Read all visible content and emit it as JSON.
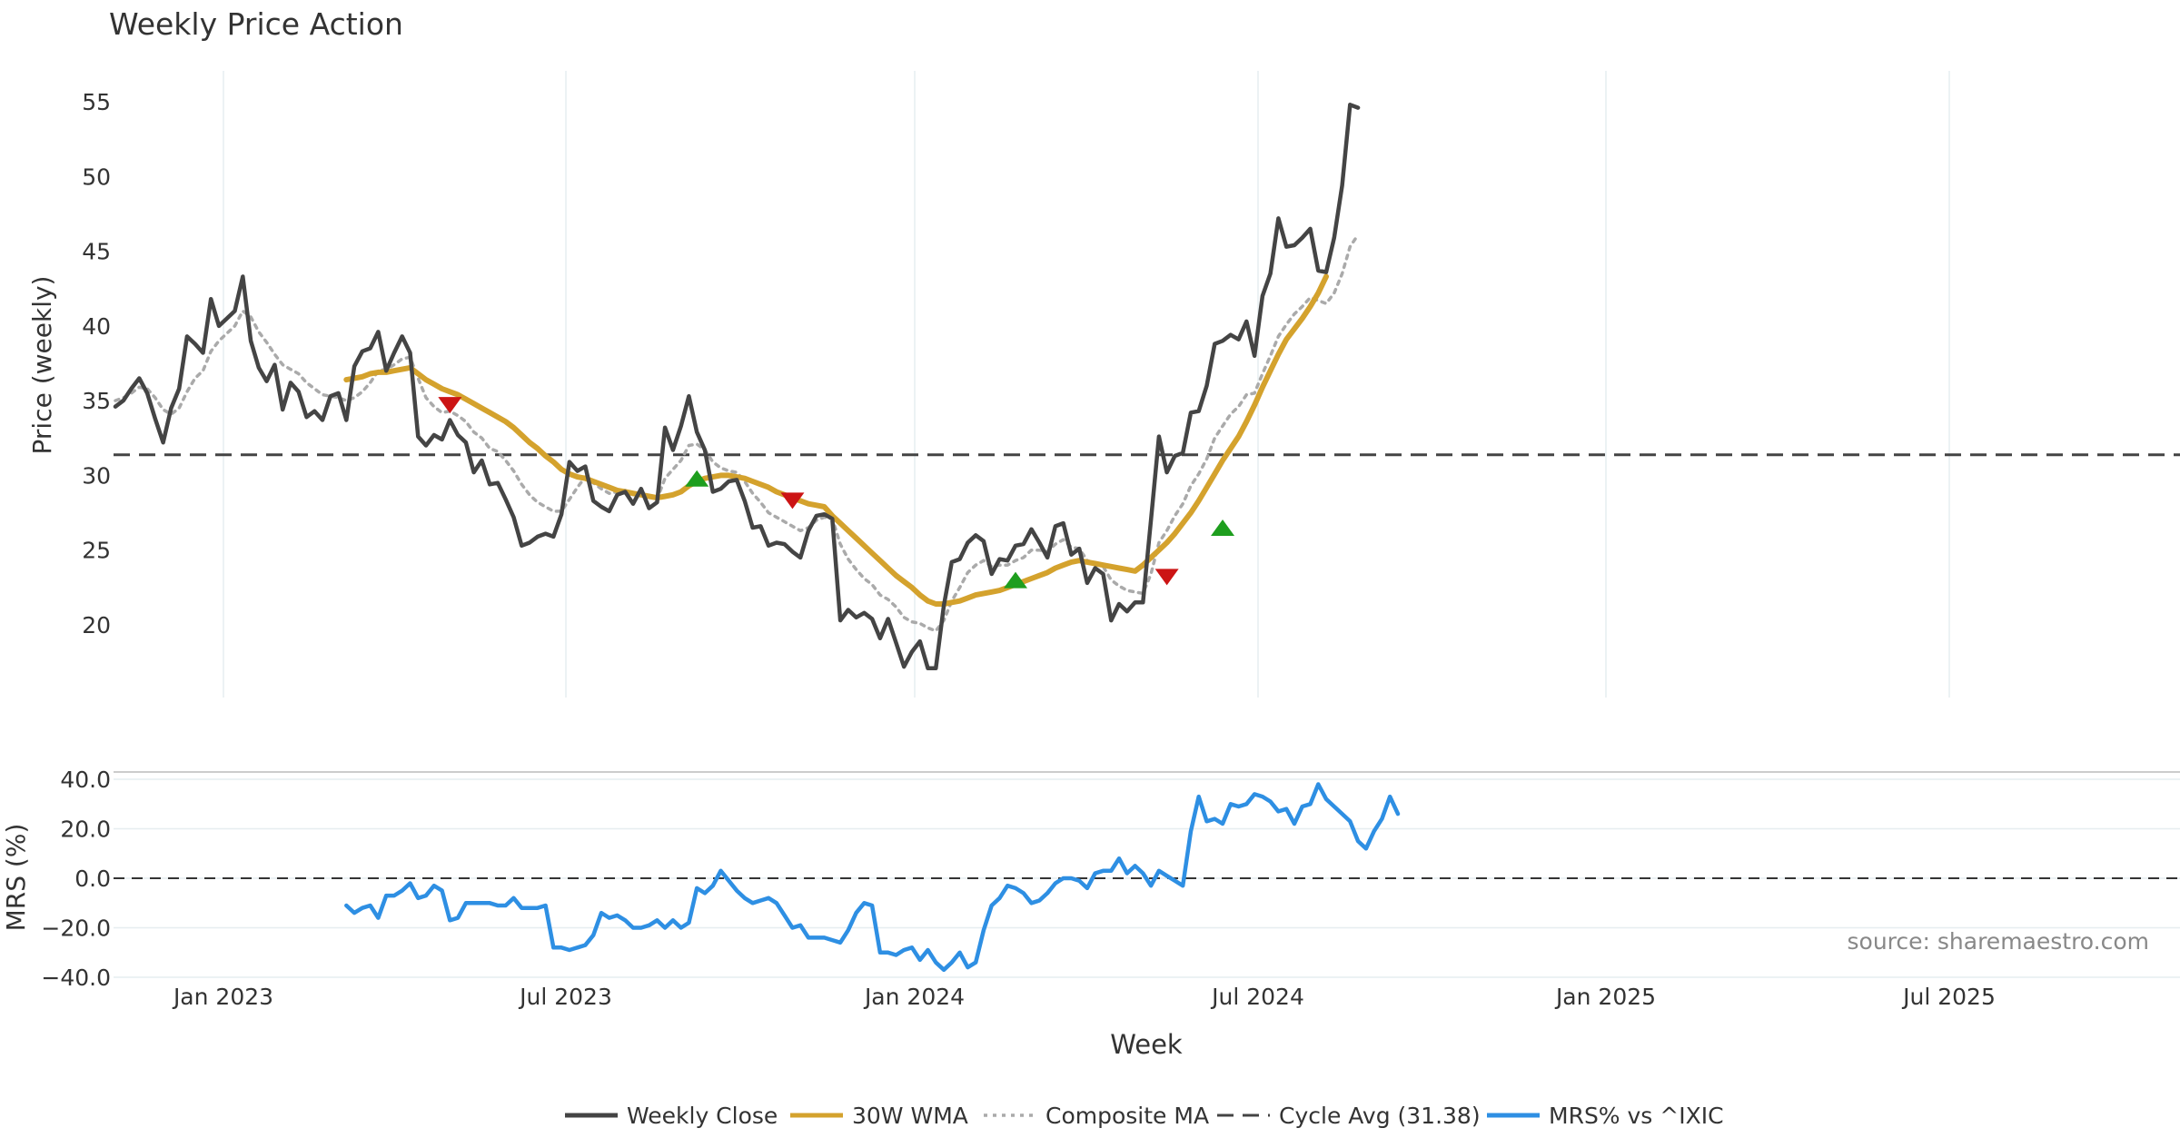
{
  "chart_data": {
    "type": "line",
    "title": "Weekly Price Action",
    "xlabel": "Week",
    "source_note": "source: sharemaestro.com",
    "x_tick_labels": [
      "Jan 2023",
      "Jul 2023",
      "Jan 2024",
      "Jul 2024",
      "Jan 2025",
      "Jul 2025"
    ],
    "price_panel": {
      "ylabel": "Price (weekly)",
      "ylim": [
        15,
        57
      ],
      "yticks": [
        "20",
        "25",
        "30",
        "35",
        "40",
        "45",
        "50",
        "55"
      ],
      "cycle_avg": 31.38,
      "weekly_close": [
        34.6,
        35.0,
        35.8,
        36.5,
        35.5,
        33.8,
        32.2,
        34.5,
        35.8,
        39.3,
        38.8,
        38.2,
        41.8,
        40.0,
        40.5,
        41.0,
        43.3,
        39.0,
        37.2,
        36.3,
        37.4,
        34.4,
        36.2,
        35.6,
        33.9,
        34.3,
        33.7,
        35.3,
        35.5,
        33.7,
        37.3,
        38.3,
        38.5,
        39.6,
        37.0,
        38.2,
        39.3,
        38.2,
        32.6,
        32.0,
        32.7,
        32.4,
        33.7,
        32.7,
        32.2,
        30.2,
        31.0,
        29.4,
        29.5,
        28.4,
        27.2,
        25.3,
        25.5,
        25.9,
        26.1,
        25.9,
        27.4,
        30.9,
        30.3,
        30.6,
        28.3,
        27.9,
        27.6,
        28.7,
        28.9,
        28.1,
        29.1,
        27.8,
        28.2,
        33.2,
        31.7,
        33.3,
        35.3,
        32.9,
        31.7,
        28.9,
        29.1,
        29.6,
        29.7,
        28.3,
        26.5,
        26.6,
        25.3,
        25.5,
        25.4,
        24.9,
        24.5,
        26.3,
        27.3,
        27.4,
        27.1,
        20.3,
        21.0,
        20.5,
        20.8,
        20.4,
        19.1,
        20.4,
        18.8,
        17.2,
        18.2,
        18.9,
        17.1,
        17.1,
        21.3,
        24.2,
        24.4,
        25.5,
        26.0,
        25.6,
        23.4,
        24.4,
        24.3,
        25.3,
        25.4,
        26.4,
        25.5,
        24.5,
        26.6,
        26.8,
        24.7,
        25.1,
        22.8,
        23.8,
        23.4,
        20.3,
        21.4,
        20.9,
        21.5,
        21.5,
        27.0,
        32.6,
        30.2,
        31.3,
        31.5,
        34.2,
        34.3,
        36.0,
        38.8,
        39.0,
        39.4,
        39.1,
        40.3,
        38.0,
        42.0,
        43.5,
        47.2,
        45.3,
        45.4,
        45.9,
        46.5,
        43.7,
        43.6,
        45.9,
        49.4,
        54.8,
        54.6
      ],
      "wma_30": {
        "start_index": 29,
        "values": [
          36.4,
          36.5,
          36.6,
          36.8,
          36.9,
          36.9,
          37.0,
          37.1,
          37.2,
          36.8,
          36.4,
          36.1,
          35.8,
          35.6,
          35.4,
          35.1,
          34.8,
          34.5,
          34.2,
          33.9,
          33.6,
          33.2,
          32.7,
          32.2,
          31.8,
          31.3,
          30.9,
          30.4,
          30.1,
          29.9,
          29.8,
          29.6,
          29.4,
          29.2,
          29.0,
          28.9,
          28.8,
          28.7,
          28.6,
          28.5,
          28.6,
          28.7,
          28.9,
          29.3,
          29.6,
          29.8,
          29.9,
          30.0,
          30.0,
          29.9,
          29.8,
          29.6,
          29.4,
          29.2,
          28.9,
          28.7,
          28.5,
          28.3,
          28.1,
          28.0,
          27.9,
          27.3,
          26.8,
          26.3,
          25.8,
          25.3,
          24.8,
          24.3,
          23.8,
          23.3,
          22.9,
          22.5,
          22.0,
          21.6,
          21.4,
          21.4,
          21.5,
          21.6,
          21.8,
          22.0,
          22.1,
          22.2,
          22.3,
          22.5,
          22.7,
          22.9,
          23.1,
          23.3,
          23.5,
          23.8,
          24.0,
          24.2,
          24.3,
          24.2,
          24.1,
          24.0,
          23.9,
          23.8,
          23.7,
          23.6,
          24.0,
          24.5,
          25.0,
          25.5,
          26.1,
          26.8,
          27.5,
          28.3,
          29.2,
          30.1,
          31.0,
          31.8,
          32.6,
          33.6,
          34.7,
          35.9,
          37.0,
          38.1,
          39.1,
          39.8,
          40.5,
          41.3,
          42.2,
          43.3
        ]
      },
      "composite_ma": [
        35.0,
        35.2,
        35.5,
        35.9,
        35.8,
        35.2,
        34.4,
        34.1,
        34.5,
        35.6,
        36.5,
        37.0,
        38.3,
        39.0,
        39.5,
        40.0,
        41.0,
        40.6,
        39.6,
        38.9,
        38.1,
        37.4,
        37.1,
        36.8,
        36.2,
        35.8,
        35.4,
        35.3,
        35.2,
        35.0,
        35.2,
        35.6,
        36.2,
        37.0,
        37.1,
        37.4,
        37.8,
        37.9,
        36.5,
        35.2,
        34.6,
        34.2,
        34.3,
        34.0,
        33.6,
        32.9,
        32.5,
        31.8,
        31.6,
        31.0,
        30.3,
        29.4,
        28.7,
        28.2,
        27.9,
        27.6,
        27.6,
        28.4,
        29.2,
        29.9,
        29.5,
        29.1,
        28.8,
        28.9,
        29.0,
        28.7,
        28.9,
        28.6,
        28.4,
        29.8,
        30.4,
        31.0,
        32.0,
        32.1,
        31.7,
        30.9,
        30.5,
        30.3,
        30.2,
        29.6,
        28.8,
        28.2,
        27.5,
        27.2,
        26.9,
        26.6,
        26.3,
        26.5,
        27.0,
        27.2,
        27.1,
        25.4,
        24.4,
        23.7,
        23.1,
        22.7,
        22.0,
        21.7,
        21.2,
        20.5,
        20.2,
        20.1,
        19.8,
        19.6,
        20.3,
        21.6,
        22.5,
        23.5,
        24.0,
        24.3,
        23.9,
        24.0,
        24.0,
        24.3,
        24.5,
        25.0,
        25.0,
        24.9,
        25.4,
        25.7,
        25.2,
        25.1,
        24.3,
        24.1,
        23.9,
        23.0,
        22.6,
        22.3,
        22.2,
        22.1,
        23.4,
        25.5,
        26.3,
        27.3,
        28.1,
        29.3,
        30.1,
        31.1,
        32.5,
        33.3,
        34.1,
        34.6,
        35.4,
        35.5,
        36.8,
        38.0,
        39.3,
        40.1,
        40.8,
        41.3,
        41.9,
        41.7,
        41.5,
        42.2,
        43.5,
        45.3,
        46.1
      ]
    },
    "mrs_panel": {
      "ylabel": "MRS (%)",
      "ylim": [
        -40,
        40
      ],
      "yticks": [
        "40.0",
        "20.0",
        "0.0",
        "−20.0",
        "−40.0"
      ],
      "start_index": 29,
      "values": [
        -11,
        -14,
        -12,
        -11,
        -16,
        -7,
        -7,
        -5,
        -2,
        -8,
        -7,
        -3,
        -5,
        -17,
        -16,
        -10,
        -10,
        -10,
        -10,
        -11,
        -11,
        -8,
        -12,
        -12,
        -12,
        -11,
        -28,
        -28,
        -29,
        -28,
        -27,
        -23,
        -14,
        -16,
        -15,
        -17,
        -20,
        -20,
        -19,
        -17,
        -20,
        -17,
        -20,
        -18,
        -4,
        -6,
        -3,
        3,
        -1,
        -5,
        -8,
        -10,
        -9,
        -8,
        -10,
        -15,
        -20,
        -19,
        -24,
        -24,
        -24,
        -25,
        -26,
        -21,
        -14,
        -10,
        -11,
        -30,
        -30,
        -31,
        -29,
        -28,
        -33,
        -29,
        -34,
        -37,
        -34,
        -30,
        -36,
        -34,
        -21,
        -11,
        -8,
        -3,
        -4,
        -6,
        -10,
        -9,
        -6,
        -2,
        0,
        0,
        -1,
        -4,
        2,
        3,
        3,
        8,
        2,
        5,
        2,
        -3,
        3,
        1,
        -1,
        -3,
        19,
        33,
        23,
        24,
        22,
        30,
        29,
        30,
        34,
        33,
        31,
        27,
        28,
        22,
        29,
        30,
        38,
        32,
        29,
        26,
        23,
        15,
        12,
        19,
        24,
        33,
        26
      ]
    },
    "signals": [
      {
        "index": 42,
        "direction": "down",
        "value": 34.7
      },
      {
        "index": 73,
        "direction": "up",
        "value": 29.8
      },
      {
        "index": 85,
        "direction": "down",
        "value": 28.3
      },
      {
        "index": 113,
        "direction": "up",
        "value": 23.0
      },
      {
        "index": 132,
        "direction": "down",
        "value": 23.2
      },
      {
        "index": 139,
        "direction": "up",
        "value": 26.5
      }
    ],
    "legend": {
      "position": "bottom",
      "entries": [
        {
          "label": "Weekly Close",
          "style": "solid",
          "color": "#444444"
        },
        {
          "label": "30W WMA",
          "style": "solid",
          "color": "#D4A22D"
        },
        {
          "label": "Composite MA",
          "style": "dotted",
          "color": "#AAAAAA"
        },
        {
          "label": "Cycle Avg (31.38)",
          "style": "dashed",
          "color": "#444444"
        },
        {
          "label": "MRS% vs ^IXIC",
          "style": "solid",
          "color": "#2E8FE3"
        }
      ]
    },
    "colors": {
      "close": "#444444",
      "wma": "#D4A22D",
      "composite": "#AAAAAA",
      "cycle": "#444444",
      "mrs": "#2E8FE3",
      "signal_up": "#1E9E1E",
      "signal_down": "#CC1414",
      "grid": "#E6EDF0",
      "text": "#333333"
    }
  }
}
